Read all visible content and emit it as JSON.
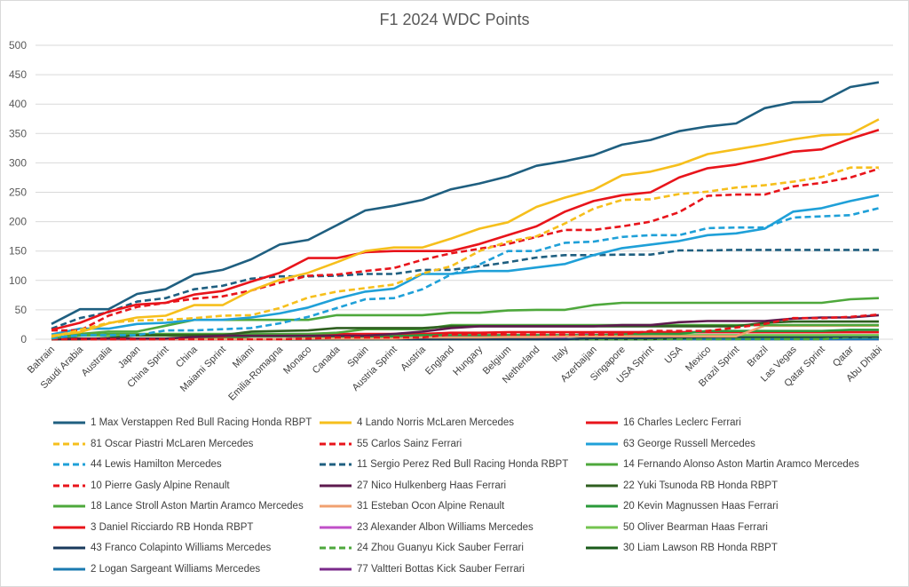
{
  "chart_data": {
    "type": "line",
    "title": "F1 2024 WDC Points",
    "xlabel": "",
    "ylabel": "",
    "ylim": [
      0,
      500
    ],
    "yticks": [
      "0",
      "50",
      "100",
      "150",
      "200",
      "250",
      "300",
      "350",
      "400",
      "450",
      "500"
    ],
    "grid": true,
    "legend_position": "bottom",
    "categories": [
      "Bahrain",
      "Saudi Arabia",
      "Australia",
      "Japan",
      "China Sprint",
      "China",
      "Maiami Sprint",
      "Miami",
      "Emilia-Romagna",
      "Monaco",
      "Canada",
      "Spain",
      "Austria Sprint",
      "Austria",
      "England",
      "Hungary",
      "Belgium",
      "Netherland",
      "Italy",
      "Azerbaijan",
      "Singapore",
      "USA Sprint",
      "USA",
      "Mexico",
      "Brazil Sprint",
      "Brazil",
      "Las Vegas",
      "Qatar Sprint",
      "Qatar",
      "Abu Dhabi"
    ],
    "series": [
      {
        "name": "1 Max Verstappen Red Bull Racing Honda RBPT",
        "color": "#1f5f80",
        "dash": false,
        "values": [
          26,
          51,
          51,
          77,
          85,
          110,
          118,
          136,
          161,
          169,
          194,
          219,
          227,
          237,
          255,
          265,
          277,
          295,
          303,
          313,
          331,
          339,
          354,
          362,
          367,
          393,
          403,
          404,
          429,
          437
        ]
      },
      {
        "name": "4 Lando Norris McLaren Mercedes",
        "color": "#f6bf1c",
        "dash": false,
        "values": [
          6,
          12,
          27,
          37,
          40,
          58,
          58,
          83,
          101,
          113,
          131,
          150,
          156,
          156,
          171,
          188,
          199,
          225,
          241,
          254,
          279,
          285,
          297,
          315,
          323,
          331,
          340,
          347,
          349,
          374
        ]
      },
      {
        "name": "16 Charles Leclerc Ferrari",
        "color": "#e8141b",
        "dash": false,
        "values": [
          16,
          28,
          47,
          59,
          62,
          76,
          82,
          98,
          113,
          138,
          138,
          148,
          150,
          150,
          150,
          162,
          177,
          192,
          217,
          235,
          245,
          250,
          275,
          291,
          297,
          307,
          319,
          323,
          341,
          356
        ]
      },
      {
        "name": "81 Oscar Piastri McLaren Mercedes",
        "color": "#f6bf1c",
        "dash": true,
        "values": [
          4,
          16,
          28,
          32,
          33,
          36,
          40,
          41,
          53,
          71,
          81,
          87,
          93,
          112,
          124,
          150,
          166,
          175,
          197,
          222,
          237,
          238,
          247,
          251,
          258,
          262,
          268,
          276,
          292,
          292
        ]
      },
      {
        "name": "55 Carlos Sainz Ferrari",
        "color": "#e8141b",
        "dash": true,
        "values": [
          15,
          15,
          40,
          55,
          62,
          69,
          73,
          83,
          96,
          108,
          110,
          116,
          121,
          135,
          146,
          154,
          162,
          174,
          186,
          186,
          192,
          200,
          216,
          244,
          246,
          246,
          260,
          266,
          275,
          290
        ]
      },
      {
        "name": "63 George Russell Mercedes",
        "color": "#1fa0d8",
        "dash": false,
        "values": [
          8,
          18,
          18,
          26,
          28,
          33,
          33,
          37,
          44,
          54,
          69,
          81,
          86,
          111,
          111,
          116,
          116,
          122,
          128,
          143,
          155,
          161,
          167,
          177,
          180,
          188,
          217,
          223,
          235,
          245
        ]
      },
      {
        "name": "44 Lewis Hamilton Mercedes",
        "color": "#1fa0d8",
        "dash": true,
        "values": [
          2,
          7,
          7,
          7,
          15,
          15,
          17,
          19,
          27,
          38,
          53,
          68,
          70,
          85,
          110,
          127,
          150,
          150,
          164,
          166,
          174,
          177,
          177,
          189,
          190,
          190,
          207,
          209,
          211,
          223
        ]
      },
      {
        "name": "11 Sergio Perez Red Bull Racing Honda RBPT",
        "color": "#1f5f80",
        "dash": true,
        "values": [
          18,
          36,
          46,
          64,
          70,
          85,
          91,
          103,
          107,
          107,
          108,
          111,
          111,
          118,
          118,
          124,
          131,
          139,
          143,
          143,
          144,
          144,
          151,
          151,
          152,
          152,
          152,
          152,
          152,
          152
        ]
      },
      {
        "name": "14 Fernando Alonso Aston Martin Aramco Mercedes",
        "color": "#4ea83c",
        "dash": false,
        "values": [
          1,
          9,
          13,
          13,
          23,
          33,
          33,
          33,
          33,
          33,
          41,
          41,
          41,
          41,
          45,
          45,
          49,
          50,
          50,
          58,
          62,
          62,
          62,
          62,
          62,
          62,
          62,
          62,
          68,
          70
        ]
      },
      {
        "name": "10 Pierre Gasly Alpine Renault",
        "color": "#e8141b",
        "dash": true,
        "values": [
          0,
          0,
          0,
          0,
          0,
          0,
          0,
          0,
          0,
          1,
          3,
          3,
          3,
          3,
          8,
          8,
          8,
          8,
          8,
          8,
          8,
          14,
          14,
          14,
          20,
          26,
          36,
          36,
          38,
          42
        ]
      },
      {
        "name": "27 Nico Hulkenberg Haas Ferrari",
        "color": "#5e1a4e",
        "dash": false,
        "values": [
          0,
          1,
          1,
          1,
          1,
          4,
          6,
          6,
          6,
          6,
          6,
          6,
          9,
          13,
          19,
          22,
          22,
          22,
          22,
          22,
          24,
          24,
          29,
          31,
          31,
          31,
          35,
          37,
          37,
          41
        ]
      },
      {
        "name": "22 Yuki Tsunoda RB Honda RBPT",
        "color": "#2f5f20",
        "dash": false,
        "values": [
          0,
          0,
          2,
          7,
          7,
          7,
          7,
          13,
          14,
          15,
          19,
          19,
          19,
          19,
          22,
          22,
          22,
          22,
          22,
          22,
          22,
          22,
          22,
          22,
          22,
          28,
          30,
          30,
          30,
          30
        ]
      },
      {
        "name": "18 Lance Stroll Aston Martin Aramco Mercedes",
        "color": "#4ea83c",
        "dash": false,
        "values": [
          0,
          6,
          9,
          9,
          9,
          9,
          9,
          9,
          9,
          9,
          11,
          17,
          17,
          17,
          24,
          24,
          24,
          24,
          24,
          24,
          24,
          24,
          24,
          24,
          24,
          24,
          24,
          24,
          24,
          24
        ]
      },
      {
        "name": "31 Esteban Ocon Alpine Renault",
        "color": "#f0a070",
        "dash": false,
        "values": [
          0,
          0,
          0,
          0,
          0,
          0,
          0,
          0,
          0,
          1,
          1,
          1,
          1,
          3,
          3,
          3,
          4,
          4,
          5,
          5,
          5,
          5,
          5,
          5,
          5,
          23,
          23,
          23,
          23,
          23
        ]
      },
      {
        "name": "20 Kevin Magnussen Haas Ferrari",
        "color": "#2a9a3a",
        "dash": false,
        "values": [
          0,
          1,
          1,
          1,
          1,
          1,
          1,
          5,
          5,
          5,
          5,
          5,
          5,
          7,
          7,
          7,
          7,
          7,
          7,
          7,
          8,
          9,
          9,
          14,
          14,
          14,
          14,
          14,
          16,
          16
        ]
      },
      {
        "name": "3 Daniel Ricciardo RB Honda RBPT",
        "color": "#e8141b",
        "dash": false,
        "values": [
          0,
          0,
          0,
          0,
          0,
          4,
          5,
          5,
          5,
          5,
          9,
          9,
          9,
          9,
          11,
          11,
          12,
          12,
          12,
          12,
          12,
          12,
          12,
          12,
          12,
          12,
          12,
          12,
          12,
          12
        ]
      },
      {
        "name": "23 Alexander Albon Williams Mercedes",
        "color": "#c050c8",
        "dash": false,
        "values": [
          0,
          0,
          0,
          0,
          0,
          0,
          0,
          0,
          0,
          2,
          2,
          4,
          4,
          4,
          4,
          4,
          4,
          4,
          4,
          12,
          12,
          12,
          12,
          12,
          12,
          12,
          12,
          12,
          12,
          12
        ]
      },
      {
        "name": "50 Oliver Bearman Haas Ferrari",
        "color": "#74c450",
        "dash": false,
        "values": [
          0,
          6,
          6,
          6,
          6,
          6,
          6,
          6,
          6,
          6,
          6,
          6,
          6,
          6,
          6,
          6,
          6,
          6,
          6,
          7,
          7,
          7,
          7,
          7,
          7,
          7,
          7,
          7,
          7,
          7
        ]
      },
      {
        "name": "43 Franco Colapinto Williams Mercedes",
        "color": "#1a3a5c",
        "dash": false,
        "values": [
          0,
          0,
          0,
          0,
          0,
          0,
          0,
          0,
          0,
          0,
          0,
          0,
          0,
          0,
          0,
          0,
          0,
          0,
          0,
          2,
          2,
          2,
          4,
          4,
          5,
          5,
          5,
          5,
          5,
          5
        ]
      },
      {
        "name": "24 Zhou Guanyu Kick Sauber Ferrari",
        "color": "#4ea83c",
        "dash": true,
        "values": [
          0,
          0,
          0,
          0,
          0,
          0,
          0,
          0,
          0,
          0,
          0,
          0,
          0,
          0,
          0,
          0,
          0,
          0,
          0,
          0,
          0,
          0,
          0,
          0,
          0,
          0,
          0,
          0,
          4,
          4
        ]
      },
      {
        "name": "30 Liam Lawson RB Honda RBPT",
        "color": "#1a5a1a",
        "dash": false,
        "values": [
          0,
          0,
          0,
          0,
          0,
          0,
          0,
          0,
          0,
          0,
          0,
          0,
          0,
          0,
          0,
          0,
          0,
          0,
          0,
          0,
          0,
          0,
          2,
          4,
          4,
          4,
          4,
          4,
          4,
          4
        ]
      },
      {
        "name": "2 Logan Sargeant Williams Mercedes",
        "color": "#1a7ab0",
        "dash": false,
        "values": [
          0,
          0,
          0,
          0,
          0,
          0,
          0,
          0,
          0,
          0,
          0,
          0,
          0,
          0,
          0,
          0,
          0,
          0,
          0,
          0,
          0,
          0,
          0,
          0,
          0,
          0,
          0,
          0,
          0,
          0
        ]
      },
      {
        "name": "77 Valtteri Bottas Kick Sauber Ferrari",
        "color": "#7a2a8a",
        "dash": false,
        "values": [
          0,
          0,
          0,
          0,
          0,
          0,
          0,
          0,
          0,
          0,
          0,
          0,
          0,
          0,
          0,
          0,
          0,
          0,
          0,
          0,
          0,
          0,
          0,
          0,
          0,
          0,
          0,
          0,
          0,
          0
        ]
      }
    ]
  }
}
